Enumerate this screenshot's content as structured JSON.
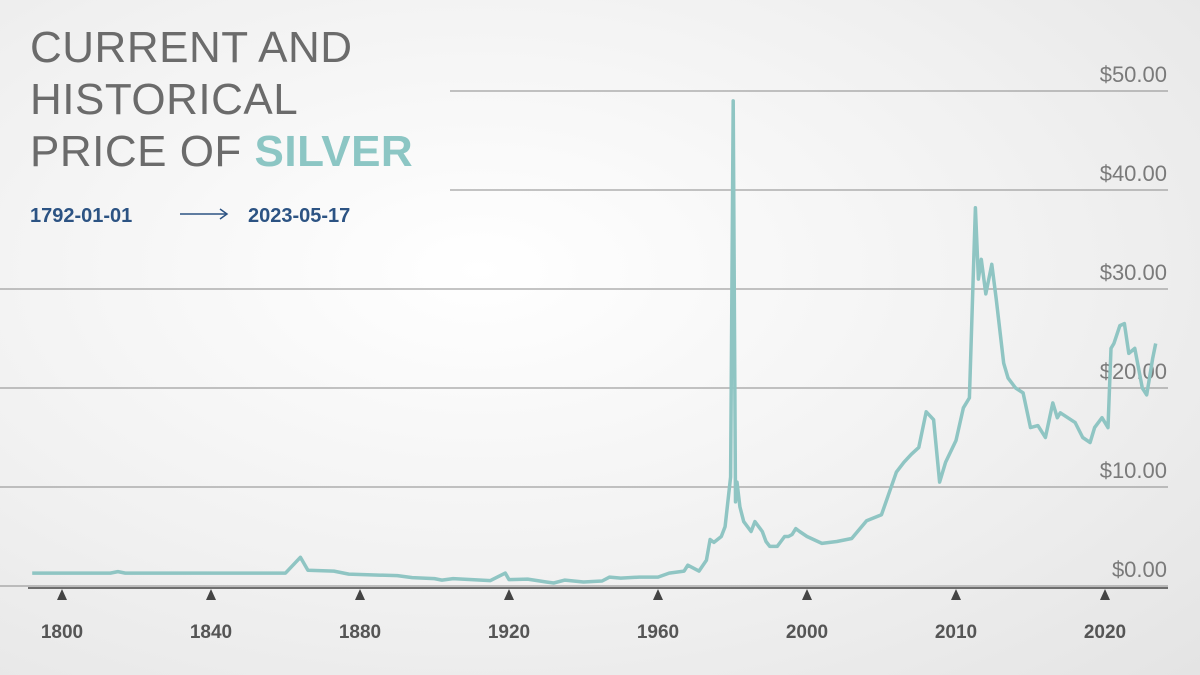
{
  "chart_data": {
    "type": "line",
    "title_lines": [
      "CURRENT AND",
      "HISTORICAL",
      "PRICE OF"
    ],
    "title_highlight": "SILVER",
    "date_start": "1792-01-01",
    "date_end": "2023-05-17",
    "xscale": "tick-uniform",
    "xlim": [
      1792,
      2024
    ],
    "xticks": [
      1800,
      1840,
      1880,
      1920,
      1960,
      2000,
      2010,
      2020
    ],
    "ylim": [
      0,
      50
    ],
    "yticks": [
      {
        "value": 0,
        "label": "$0.00"
      },
      {
        "value": 10,
        "label": "$10.00"
      },
      {
        "value": 20,
        "label": "$20.00"
      },
      {
        "value": 30,
        "label": "$30.00"
      },
      {
        "value": 40,
        "label": "$40.00"
      },
      {
        "value": 50,
        "label": "$50.00"
      }
    ],
    "grid": true,
    "series": [
      {
        "color": "#8fc5c3",
        "x": [
          1792,
          1813,
          1815,
          1817,
          1860,
          1864,
          1866,
          1873,
          1877,
          1885,
          1890,
          1894,
          1900,
          1902,
          1905,
          1910,
          1915,
          1919,
          1920,
          1925,
          1930,
          1932,
          1935,
          1940,
          1945,
          1947,
          1950,
          1955,
          1960,
          1963,
          1967,
          1968,
          1971,
          1973,
          1974,
          1975,
          1977,
          1978,
          1979.5,
          1980.2,
          1980.8,
          1981.2,
          1982,
          1983,
          1985,
          1986,
          1987,
          1988,
          1989,
          1990,
          1991,
          1992,
          1993,
          1994,
          1995,
          1996,
          1997,
          1998,
          2000,
          2001,
          2002,
          2003,
          2004,
          2005,
          2006,
          2006.5,
          2007,
          2007.5,
          2008,
          2008.5,
          2008.9,
          2009.3,
          2010,
          2010.5,
          2010.9,
          2011.3,
          2011.5,
          2011.7,
          2012,
          2012.4,
          2012.7,
          2013.2,
          2013.5,
          2014,
          2014.5,
          2015,
          2015.5,
          2016,
          2016.5,
          2016.8,
          2017,
          2018,
          2018.5,
          2019,
          2019.3,
          2019.8,
          2020.2,
          2020.4,
          2020.6,
          2021,
          2021.3,
          2021.6,
          2022,
          2022.5,
          2022.8,
          2023.2,
          2023.4
        ],
        "values": [
          1.3,
          1.3,
          1.45,
          1.3,
          1.3,
          2.9,
          1.6,
          1.5,
          1.2,
          1.1,
          1.05,
          0.85,
          0.75,
          0.6,
          0.75,
          0.65,
          0.55,
          1.3,
          0.65,
          0.7,
          0.4,
          0.3,
          0.6,
          0.4,
          0.5,
          0.9,
          0.8,
          0.9,
          0.9,
          1.3,
          1.5,
          2.1,
          1.5,
          2.6,
          4.7,
          4.4,
          5,
          6,
          11,
          49,
          8.5,
          10.5,
          8,
          6.5,
          5.5,
          6.5,
          6,
          5.5,
          4.5,
          4,
          4,
          4,
          4.5,
          5,
          5,
          5.2,
          5.8,
          5.5,
          5,
          4.3,
          4.5,
          4.8,
          6.6,
          7.2,
          11.5,
          12.5,
          13.3,
          14,
          17.6,
          16.8,
          10.5,
          12.5,
          14.7,
          18,
          19,
          38.2,
          31,
          33,
          29.5,
          32.5,
          29,
          22.5,
          21,
          20,
          19.5,
          16,
          16.2,
          15,
          18.5,
          17,
          17.5,
          16.5,
          15,
          14.5,
          16,
          17,
          16,
          24,
          24.5,
          26.3,
          26.5,
          23.5,
          24,
          20,
          19.3,
          23,
          24.5
        ]
      }
    ]
  }
}
